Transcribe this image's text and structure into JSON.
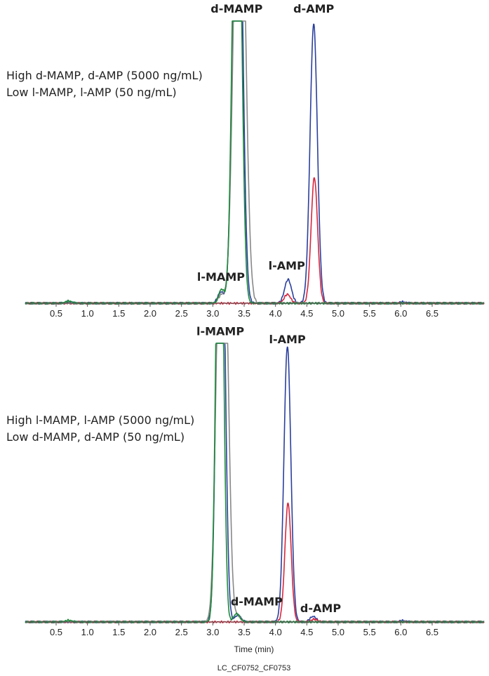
{
  "chart_data": [
    {
      "type": "line",
      "panel": "top",
      "condition_lines": [
        "High d-MAMP, d-AMP (5000 ng/mL)",
        "Low l-MAMP, l-AMP (50 ng/mL)"
      ],
      "xlim": [
        0,
        6.9
      ],
      "ylim": [
        0,
        100
      ],
      "x_ticks": [
        "0.5",
        "1.0",
        "1.5",
        "2.0",
        "2.5",
        "3.0",
        "3.5",
        "4.0",
        "4.5",
        "5.0",
        "5.5",
        "6.0",
        "6.5"
      ],
      "series": [
        {
          "color": "#2a3f9d",
          "peaks": [
            {
              "x": 3.13,
              "h": 4.0,
              "w": 0.05
            },
            {
              "x": 3.36,
              "h": 115,
              "w": 0.06
            },
            {
              "x": 3.43,
              "h": 115,
              "w": 0.06
            },
            {
              "x": 4.2,
              "h": 8.5,
              "w": 0.055
            },
            {
              "x": 4.61,
              "h": 100,
              "w": 0.058
            },
            {
              "x": 0.7,
              "h": 0.5,
              "w": 0.05
            },
            {
              "x": 6.03,
              "h": 0.5,
              "w": 0.05
            }
          ]
        },
        {
          "color": "#d7263d",
          "peaks": [
            {
              "x": 4.19,
              "h": 3.2,
              "w": 0.05
            },
            {
              "x": 4.62,
              "h": 45,
              "w": 0.052
            }
          ]
        },
        {
          "color": "#888888",
          "peaks": [
            {
              "x": 3.14,
              "h": 3.0,
              "w": 0.05
            },
            {
              "x": 3.38,
              "h": 115,
              "w": 0.07
            },
            {
              "x": 3.47,
              "h": 115,
              "w": 0.07
            }
          ]
        },
        {
          "color": "#1e8a3c",
          "peaks": [
            {
              "x": 3.14,
              "h": 5.0,
              "w": 0.045
            },
            {
              "x": 3.35,
              "h": 115,
              "w": 0.055
            },
            {
              "x": 3.42,
              "h": 115,
              "w": 0.055
            },
            {
              "x": 0.7,
              "h": 0.8,
              "w": 0.05
            }
          ]
        }
      ],
      "annotations": [
        {
          "text": "d-MAMP",
          "x": 3.38,
          "y": 104
        },
        {
          "text": "d-AMP",
          "x": 4.61,
          "y": 104
        },
        {
          "text": "l-MAMP",
          "x": 3.13,
          "y": 8
        },
        {
          "text": "l-AMP",
          "x": 4.18,
          "y": 12
        }
      ]
    },
    {
      "type": "line",
      "panel": "bottom",
      "condition_lines": [
        "High l-MAMP, l-AMP (5000 ng/mL)",
        "Low d-MAMP, d-AMP (50 ng/mL)"
      ],
      "xlim": [
        0,
        6.9
      ],
      "ylim": [
        0,
        100
      ],
      "x_ticks": [
        "0.5",
        "1.0",
        "1.5",
        "2.0",
        "2.5",
        "3.0",
        "3.5",
        "4.0",
        "4.5",
        "5.0",
        "5.5",
        "6.0",
        "6.5"
      ],
      "xlabel": "Time (min)",
      "series": [
        {
          "color": "#2a3f9d",
          "peaks": [
            {
              "x": 3.09,
              "h": 115,
              "w": 0.05
            },
            {
              "x": 3.16,
              "h": 115,
              "w": 0.05
            },
            {
              "x": 3.4,
              "h": 2.5,
              "w": 0.05
            },
            {
              "x": 4.19,
              "h": 100,
              "w": 0.055
            },
            {
              "x": 4.6,
              "h": 2.0,
              "w": 0.05
            },
            {
              "x": 6.03,
              "h": 0.5,
              "w": 0.05
            }
          ]
        },
        {
          "color": "#d7263d",
          "peaks": [
            {
              "x": 4.2,
              "h": 43,
              "w": 0.05
            },
            {
              "x": 4.62,
              "h": 1.0,
              "w": 0.05
            }
          ]
        },
        {
          "color": "#888888",
          "peaks": [
            {
              "x": 3.1,
              "h": 115,
              "w": 0.06
            },
            {
              "x": 3.2,
              "h": 115,
              "w": 0.06
            },
            {
              "x": 3.4,
              "h": 2.0,
              "w": 0.05
            }
          ]
        },
        {
          "color": "#1e8a3c",
          "peaks": [
            {
              "x": 3.08,
              "h": 115,
              "w": 0.045
            },
            {
              "x": 3.14,
              "h": 115,
              "w": 0.045
            },
            {
              "x": 3.38,
              "h": 3.0,
              "w": 0.05
            },
            {
              "x": 0.7,
              "h": 0.6,
              "w": 0.05
            }
          ]
        }
      ],
      "annotations": [
        {
          "text": "l-MAMP",
          "x": 3.12,
          "y": 104
        },
        {
          "text": "l-AMP",
          "x": 4.19,
          "y": 101
        },
        {
          "text": "d-MAMP",
          "x": 3.7,
          "y": 6
        },
        {
          "text": "d-AMP",
          "x": 4.72,
          "y": 3.5
        }
      ]
    }
  ],
  "footer": "LC_CF0752_CF0753"
}
